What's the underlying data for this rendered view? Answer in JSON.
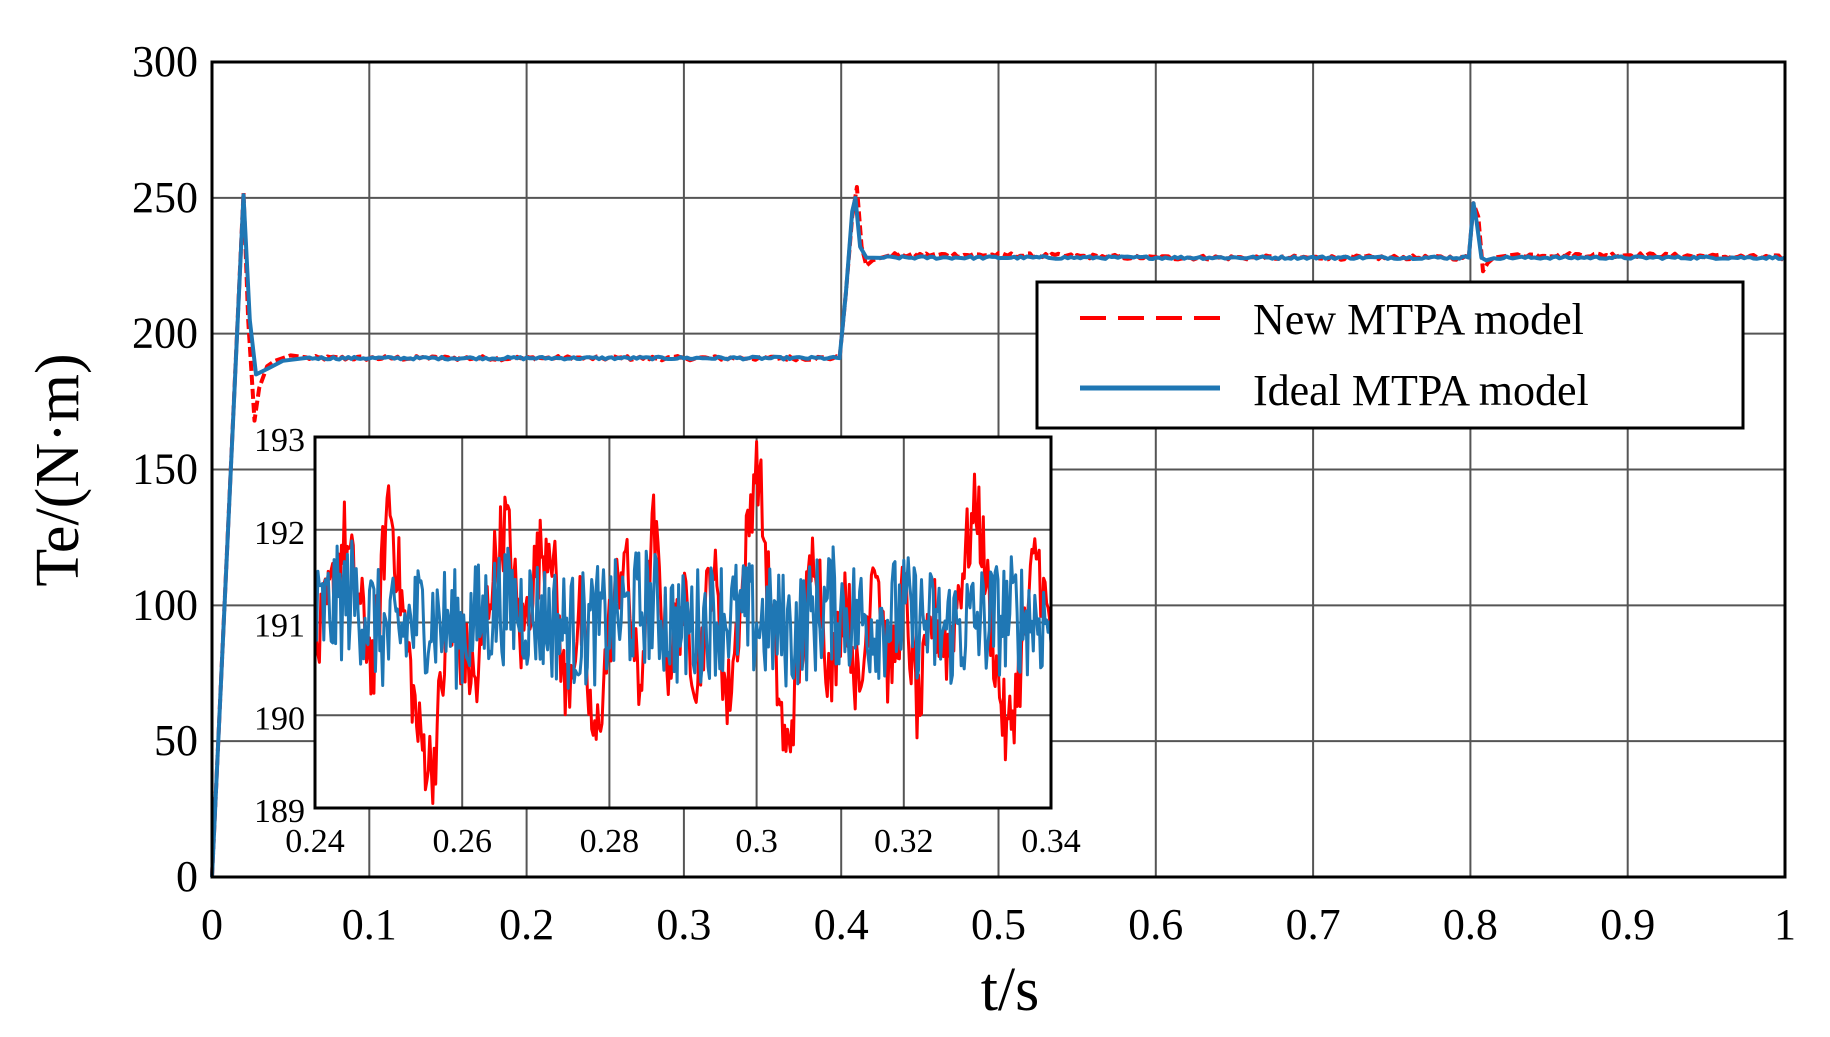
{
  "chart_data": [
    {
      "id": "main",
      "type": "line",
      "title": "",
      "xlabel": "t/s",
      "ylabel": "Te/(N·m)",
      "xlim": [
        0,
        1
      ],
      "ylim": [
        0,
        300
      ],
      "xticks": [
        0,
        0.1,
        0.2,
        0.3,
        0.4,
        0.5,
        0.6,
        0.7,
        0.8,
        0.9,
        1
      ],
      "xtick_labels": [
        "0",
        "0.1",
        "0.2",
        "0.3",
        "0.4",
        "0.5",
        "0.6",
        "0.7",
        "0.8",
        "0.9",
        "1"
      ],
      "yticks": [
        0,
        50,
        100,
        150,
        200,
        250,
        300
      ],
      "ytick_labels": [
        "0",
        "50",
        "100",
        "150",
        "200",
        "250",
        "300"
      ],
      "grid": true,
      "legend_position": "upper-right",
      "series": [
        {
          "name": "New MTPA model",
          "color": "#ff0000",
          "style": "dashed",
          "x": [
            0,
            0.02,
            0.023,
            0.027,
            0.03,
            0.035,
            0.04,
            0.05,
            0.06,
            0.1,
            0.2,
            0.3,
            0.399,
            0.403,
            0.407,
            0.41,
            0.413,
            0.416,
            0.42,
            0.43,
            0.5,
            0.6,
            0.7,
            0.799,
            0.802,
            0.805,
            0.808,
            0.811,
            0.815,
            0.83,
            0.9,
            1.0
          ],
          "y": [
            0,
            252,
            205,
            168,
            180,
            188,
            190,
            192,
            191,
            191,
            191,
            191,
            191,
            215,
            243,
            254,
            232,
            225,
            227,
            229,
            229,
            228,
            228,
            228,
            248,
            243,
            223,
            226,
            228,
            229,
            229,
            228
          ]
        },
        {
          "name": "Ideal MTPA model",
          "color": "#1f77b4",
          "style": "solid",
          "x": [
            0,
            0.02,
            0.024,
            0.028,
            0.035,
            0.045,
            0.06,
            0.1,
            0.2,
            0.3,
            0.399,
            0.403,
            0.407,
            0.409,
            0.412,
            0.416,
            0.425,
            0.5,
            0.6,
            0.7,
            0.799,
            0.802,
            0.804,
            0.807,
            0.81,
            0.815,
            0.9,
            1.0
          ],
          "y": [
            0,
            251,
            205,
            185,
            187,
            190,
            191,
            191,
            191,
            191,
            191,
            215,
            245,
            250,
            232,
            228,
            228,
            228,
            228,
            228,
            228,
            248,
            241,
            228,
            227,
            228,
            228,
            228
          ]
        }
      ]
    },
    {
      "id": "inset",
      "type": "line",
      "title": "",
      "xlabel": "",
      "ylabel": "",
      "xlim": [
        0.24,
        0.34
      ],
      "ylim": [
        189,
        193
      ],
      "xticks": [
        0.24,
        0.26,
        0.28,
        0.3,
        0.32,
        0.34
      ],
      "xtick_labels": [
        "0.24",
        "0.26",
        "0.28",
        "0.3",
        "0.32",
        "0.34"
      ],
      "yticks": [
        189,
        190,
        191,
        192,
        193
      ],
      "ytick_labels": [
        "189",
        "190",
        "191",
        "192",
        "193"
      ],
      "grid": true,
      "series": [
        {
          "name": "New MTPA model",
          "color": "#ff0000",
          "style": "solid",
          "x": [
            0.24,
            0.244,
            0.248,
            0.25,
            0.252,
            0.254,
            0.256,
            0.258,
            0.26,
            0.262,
            0.264,
            0.266,
            0.268,
            0.27,
            0.272,
            0.274,
            0.276,
            0.278,
            0.28,
            0.282,
            0.284,
            0.286,
            0.288,
            0.29,
            0.292,
            0.294,
            0.296,
            0.298,
            0.3,
            0.302,
            0.304,
            0.306,
            0.308,
            0.31,
            0.312,
            0.314,
            0.316,
            0.318,
            0.32,
            0.322,
            0.324,
            0.326,
            0.328,
            0.33,
            0.332,
            0.334,
            0.336,
            0.338,
            0.34
          ],
          "y": [
            190.6,
            191.9,
            190.5,
            192.4,
            191.1,
            189.8,
            189.4,
            190.9,
            190.7,
            190.3,
            191.5,
            192.1,
            190.8,
            191.6,
            192.0,
            190.2,
            191.1,
            189.6,
            190.9,
            191.8,
            190.2,
            192.0,
            190.6,
            191.2,
            190.4,
            191.7,
            190.1,
            191.3,
            192.9,
            191.0,
            189.5,
            190.7,
            191.9,
            190.3,
            191.4,
            190.1,
            191.9,
            190.4,
            191.3,
            190.0,
            191.1,
            190.7,
            191.6,
            192.3,
            190.9,
            189.7,
            190.6,
            191.8,
            190.8
          ]
        },
        {
          "name": "Ideal MTPA model",
          "color": "#1f77b4",
          "style": "solid",
          "x": [
            0.24,
            0.245,
            0.25,
            0.255,
            0.26,
            0.265,
            0.27,
            0.275,
            0.28,
            0.285,
            0.29,
            0.295,
            0.3,
            0.305,
            0.31,
            0.315,
            0.32,
            0.325,
            0.33,
            0.335,
            0.34
          ],
          "y": [
            191.0,
            191.3,
            190.8,
            191.1,
            190.9,
            191.2,
            191.1,
            190.9,
            191.0,
            191.2,
            190.9,
            191.1,
            191.0,
            190.9,
            191.2,
            191.0,
            191.1,
            190.9,
            191.0,
            191.1,
            191.0
          ]
        }
      ]
    }
  ],
  "legend": {
    "items": [
      {
        "label": "New MTPA model",
        "color": "#ff0000",
        "style": "dashed"
      },
      {
        "label": "Ideal MTPA model",
        "color": "#1f77b4",
        "style": "solid"
      }
    ]
  }
}
